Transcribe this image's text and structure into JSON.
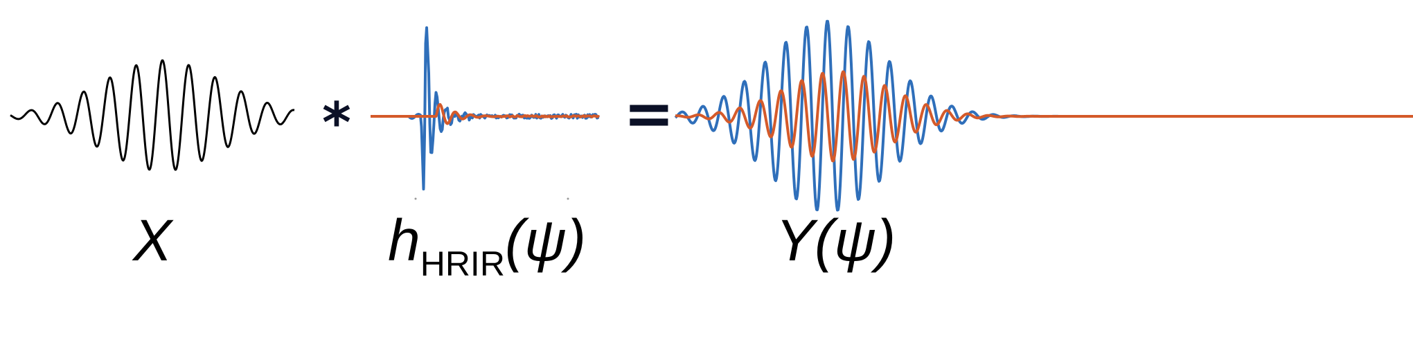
{
  "colors": {
    "input": "#000000",
    "blue": "#2f6fba",
    "orange": "#d45a2a",
    "operator": "#0b1026"
  },
  "operators": {
    "convolve": "*",
    "equals": "="
  },
  "labels": {
    "x": "X",
    "h_main": "h",
    "h_sub": "HRIR",
    "h_arg": "(ψ)",
    "y": "Y(ψ)"
  },
  "panels": [
    {
      "name": "input-signal",
      "series": [
        "black"
      ]
    },
    {
      "name": "hrir",
      "series": [
        "blue",
        "orange"
      ]
    },
    {
      "name": "output-signal",
      "series": [
        "blue",
        "orange"
      ]
    }
  ]
}
